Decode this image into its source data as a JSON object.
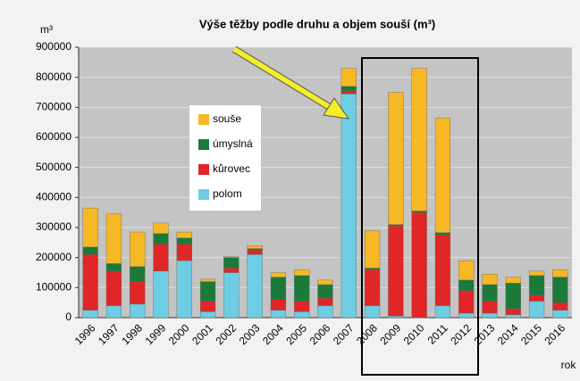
{
  "chart_data": {
    "type": "stacked_bar",
    "title": "Výše těžby podle druhu a objem souší (m³)",
    "y_axis_label": "m³",
    "x_axis_label": "rok",
    "categories": [
      "1996",
      "1997",
      "1998",
      "1999",
      "2000",
      "2001",
      "2002",
      "2003",
      "2004",
      "2005",
      "2006",
      "2007",
      "2008",
      "2009",
      "2010",
      "2011",
      "2012",
      "2013",
      "2014",
      "2015",
      "2016"
    ],
    "series": [
      {
        "name": "polom",
        "color": "#6ccde3",
        "values": [
          25000,
          40000,
          45000,
          155000,
          190000,
          20000,
          150000,
          210000,
          25000,
          20000,
          40000,
          745000,
          40000,
          5000,
          0,
          40000,
          15000,
          15000,
          10000,
          55000,
          25000
        ]
      },
      {
        "name": "kůrovec",
        "color": "#e02626",
        "values": [
          185000,
          115000,
          75000,
          90000,
          55000,
          35000,
          15000,
          15000,
          35000,
          35000,
          25000,
          10000,
          120000,
          300000,
          350000,
          235000,
          75000,
          40000,
          20000,
          20000,
          25000
        ]
      },
      {
        "name": "úmyslná",
        "color": "#1b7a3a",
        "values": [
          25000,
          25000,
          50000,
          35000,
          20000,
          65000,
          35000,
          5000,
          75000,
          85000,
          45000,
          15000,
          5000,
          5000,
          5000,
          8000,
          35000,
          55000,
          85000,
          65000,
          85000
        ]
      },
      {
        "name": "souše",
        "color": "#f7b825",
        "values": [
          130000,
          165000,
          115000,
          35000,
          20000,
          8000,
          3000,
          10000,
          15000,
          20000,
          15000,
          60000,
          125000,
          440000,
          475000,
          382000,
          65000,
          35000,
          20000,
          15000,
          25000
        ]
      }
    ],
    "ylim": [
      0,
      900000
    ],
    "yticks": [
      0,
      100000,
      200000,
      300000,
      400000,
      500000,
      600000,
      700000,
      800000,
      900000
    ],
    "grid": true
  }
}
